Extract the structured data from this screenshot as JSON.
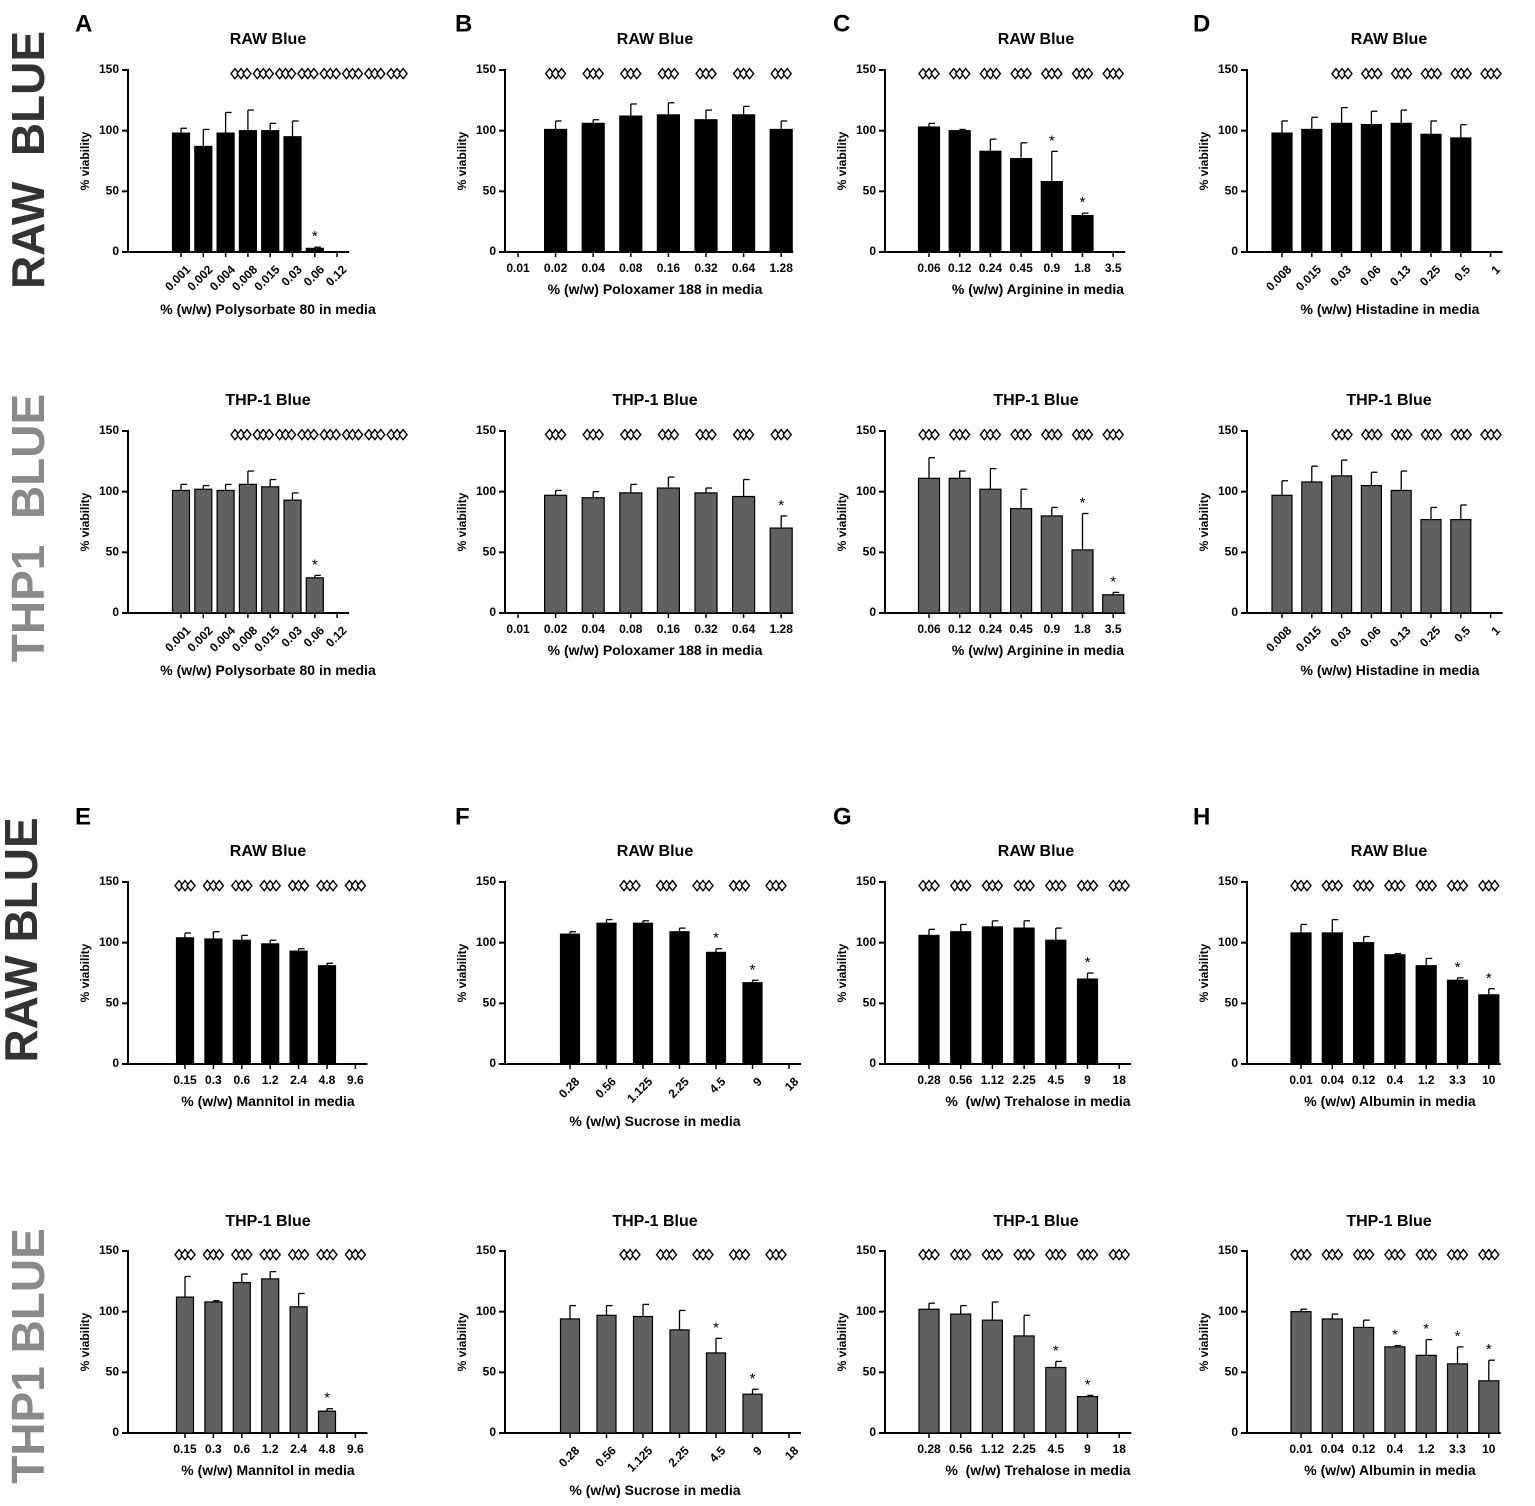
{
  "row_labels": [
    {
      "text": "RAW  BLUE",
      "color": "#333333"
    },
    {
      "text": "THP1  BLUE",
      "color": "#8a8a8a"
    },
    {
      "text": "RAW BLUE",
      "color": "#333333"
    },
    {
      "text": "THP1 BLUE",
      "color": "#8a8a8a"
    }
  ],
  "colors": {
    "raw_bar": "#000000",
    "thp_bar": "#606060",
    "axis": "#000000"
  },
  "chart_data": [
    {
      "id": "A1",
      "letter": "A",
      "type": "bar",
      "title": "RAW Blue",
      "xlabel": "% (w/w) Polysorbate 80 in media",
      "ylabel": "% viability",
      "ylim": [
        0,
        150
      ],
      "yticks": [
        0,
        50,
        100,
        150
      ],
      "categories": [
        "0.001",
        "0.002",
        "0.004",
        "0.008",
        "0.015",
        "0.03",
        "0.06",
        "0.12"
      ],
      "values": [
        98,
        87,
        98,
        100,
        100,
        95,
        3,
        null
      ],
      "errors": [
        4,
        14,
        17,
        17,
        6,
        13,
        1,
        null
      ],
      "significant": [
        false,
        false,
        false,
        false,
        false,
        false,
        true,
        false
      ],
      "rotate_ticks": true,
      "fill": "raw"
    },
    {
      "id": "B1",
      "letter": "B",
      "type": "bar",
      "title": "RAW Blue",
      "xlabel": "% (w/w) Poloxamer 188 in media",
      "ylabel": "% viability",
      "ylim": [
        0,
        150
      ],
      "yticks": [
        0,
        50,
        100,
        150
      ],
      "categories": [
        "0.01",
        "0.02",
        "0.04",
        "0.08",
        "0.16",
        "0.32",
        "0.64",
        "1.28"
      ],
      "values": [
        null,
        101,
        106,
        112,
        113,
        109,
        113,
        101
      ],
      "errors": [
        null,
        7,
        3,
        10,
        10,
        8,
        7,
        7
      ],
      "significant": [
        false,
        false,
        false,
        false,
        false,
        false,
        false,
        false
      ],
      "rotate_ticks": false,
      "fill": "raw"
    },
    {
      "id": "C1",
      "letter": "C",
      "type": "bar",
      "title": "RAW Blue",
      "xlabel": "% (w/w) Arginine in media",
      "ylabel": "% viability",
      "ylim": [
        0,
        150
      ],
      "yticks": [
        0,
        50,
        100,
        150
      ],
      "categories": [
        "0.06",
        "0.12",
        "0.24",
        "0.45",
        "0.9",
        "1.8",
        "3.5"
      ],
      "values": [
        103,
        100,
        83,
        77,
        58,
        30,
        null
      ],
      "errors": [
        3,
        1,
        10,
        13,
        25,
        2,
        null
      ],
      "significant": [
        false,
        false,
        false,
        false,
        true,
        true,
        false
      ],
      "rotate_ticks": false,
      "fill": "raw"
    },
    {
      "id": "D1",
      "letter": "D",
      "type": "bar",
      "title": "RAW Blue",
      "xlabel": "% (w/w) Histadine in media",
      "ylabel": "% viability",
      "ylim": [
        0,
        150
      ],
      "yticks": [
        0,
        50,
        100,
        150
      ],
      "categories": [
        "0.008",
        "0.015",
        "0.03",
        "0.06",
        "0.13",
        "0.25",
        "0.5",
        "1"
      ],
      "values": [
        98,
        101,
        106,
        105,
        106,
        97,
        94,
        null
      ],
      "errors": [
        10,
        10,
        13,
        11,
        11,
        11,
        11,
        null
      ],
      "significant": [
        false,
        false,
        false,
        false,
        false,
        false,
        false,
        false
      ],
      "rotate_ticks": true,
      "fill": "raw"
    },
    {
      "id": "A2",
      "letter": "",
      "type": "bar",
      "title": "THP-1 Blue",
      "xlabel": "% (w/w) Polysorbate 80 in media",
      "ylabel": "% viability",
      "ylim": [
        0,
        150
      ],
      "yticks": [
        0,
        50,
        100,
        150
      ],
      "categories": [
        "0.001",
        "0.002",
        "0.004",
        "0.008",
        "0.015",
        "0.03",
        "0.06",
        "0.12"
      ],
      "values": [
        101,
        102,
        101,
        106,
        104,
        93,
        29,
        null
      ],
      "errors": [
        5,
        3,
        5,
        11,
        6,
        6,
        2,
        null
      ],
      "significant": [
        false,
        false,
        false,
        false,
        false,
        false,
        true,
        false
      ],
      "rotate_ticks": true,
      "fill": "thp"
    },
    {
      "id": "B2",
      "letter": "",
      "type": "bar",
      "title": "THP-1 Blue",
      "xlabel": "% (w/w) Poloxamer 188 in media",
      "ylabel": "% viability",
      "ylim": [
        0,
        150
      ],
      "yticks": [
        0,
        50,
        100,
        150
      ],
      "categories": [
        "0.01",
        "0.02",
        "0.04",
        "0.08",
        "0.16",
        "0.32",
        "0.64",
        "1.28"
      ],
      "values": [
        null,
        97,
        95,
        99,
        103,
        99,
        96,
        70
      ],
      "errors": [
        null,
        4,
        5,
        7,
        9,
        4,
        14,
        10
      ],
      "significant": [
        false,
        false,
        false,
        false,
        false,
        false,
        false,
        true
      ],
      "rotate_ticks": false,
      "fill": "thp"
    },
    {
      "id": "C2",
      "letter": "",
      "type": "bar",
      "title": "THP-1 Blue",
      "xlabel": "% (w/w) Arginine in media",
      "ylabel": "% viability",
      "ylim": [
        0,
        150
      ],
      "yticks": [
        0,
        50,
        100,
        150
      ],
      "categories": [
        "0.06",
        "0.12",
        "0.24",
        "0.45",
        "0.9",
        "1.8",
        "3.5"
      ],
      "values": [
        111,
        111,
        102,
        86,
        80,
        52,
        15
      ],
      "errors": [
        17,
        6,
        17,
        16,
        7,
        30,
        2
      ],
      "significant": [
        false,
        false,
        false,
        false,
        false,
        true,
        true
      ],
      "rotate_ticks": false,
      "fill": "thp"
    },
    {
      "id": "D2",
      "letter": "",
      "type": "bar",
      "title": "THP-1 Blue",
      "xlabel": "% (w/w) Histadine in media",
      "ylabel": "% viability",
      "ylim": [
        0,
        150
      ],
      "yticks": [
        0,
        50,
        100,
        150
      ],
      "categories": [
        "0.008",
        "0.015",
        "0.03",
        "0.06",
        "0.13",
        "0.25",
        "0.5",
        "1"
      ],
      "values": [
        97,
        108,
        113,
        105,
        101,
        77,
        77,
        null
      ],
      "errors": [
        12,
        13,
        13,
        11,
        16,
        10,
        12,
        null
      ],
      "significant": [
        false,
        false,
        false,
        false,
        false,
        false,
        false,
        false
      ],
      "rotate_ticks": true,
      "fill": "thp"
    },
    {
      "id": "E1",
      "letter": "E",
      "type": "bar",
      "title": "RAW Blue",
      "xlabel": "% (w/w) Mannitol in media",
      "ylabel": "% viability",
      "ylim": [
        0,
        150
      ],
      "yticks": [
        0,
        50,
        100,
        150
      ],
      "categories": [
        "0.15",
        "0.3",
        "0.6",
        "1.2",
        "2.4",
        "4.8",
        "9.6"
      ],
      "values": [
        104,
        103,
        102,
        99,
        93,
        81,
        null
      ],
      "errors": [
        4,
        6,
        4,
        3,
        2,
        2,
        null
      ],
      "significant": [
        false,
        false,
        false,
        false,
        false,
        false,
        false
      ],
      "rotate_ticks": false,
      "fill": "raw"
    },
    {
      "id": "F1",
      "letter": "F",
      "type": "bar",
      "title": "RAW Blue",
      "xlabel": "% (w/w) Sucrose in media",
      "ylabel": "% viability",
      "ylim": [
        0,
        150
      ],
      "yticks": [
        0,
        50,
        100,
        150
      ],
      "categories": [
        "0.28",
        "0.56",
        "1.125",
        "2.25",
        "4.5",
        "9",
        "18"
      ],
      "values": [
        107,
        116,
        116,
        109,
        92,
        67,
        null
      ],
      "errors": [
        2,
        3,
        2,
        3,
        3,
        2,
        null
      ],
      "significant": [
        false,
        false,
        false,
        false,
        true,
        true,
        false
      ],
      "rotate_ticks": true,
      "fill": "raw"
    },
    {
      "id": "G1",
      "letter": "G",
      "type": "bar",
      "title": "RAW Blue",
      "xlabel": "%  (w/w) Trehalose in media",
      "ylabel": "% viability",
      "ylim": [
        0,
        150
      ],
      "yticks": [
        0,
        50,
        100,
        150
      ],
      "categories": [
        "0.28",
        "0.56",
        "1.12",
        "2.25",
        "4.5",
        "9",
        "18"
      ],
      "values": [
        106,
        109,
        113,
        112,
        102,
        70,
        null
      ],
      "errors": [
        5,
        6,
        5,
        6,
        10,
        5,
        null
      ],
      "significant": [
        false,
        false,
        false,
        false,
        false,
        true,
        false
      ],
      "rotate_ticks": false,
      "fill": "raw"
    },
    {
      "id": "H1",
      "letter": "H",
      "type": "bar",
      "title": "RAW Blue",
      "xlabel": "% (w/w) Albumin in media",
      "ylabel": "% viability",
      "ylim": [
        0,
        150
      ],
      "yticks": [
        0,
        50,
        100,
        150
      ],
      "categories": [
        "0.01",
        "0.04",
        "0.12",
        "0.4",
        "1.2",
        "3.3",
        "10"
      ],
      "values": [
        108,
        108,
        100,
        90,
        81,
        69,
        57
      ],
      "errors": [
        7,
        11,
        5,
        1,
        6,
        2,
        5
      ],
      "significant": [
        false,
        false,
        false,
        false,
        false,
        true,
        true
      ],
      "rotate_ticks": false,
      "fill": "raw"
    },
    {
      "id": "E2",
      "letter": "",
      "type": "bar",
      "title": "THP-1 Blue",
      "xlabel": "% (w/w) Mannitol in media",
      "ylabel": "% viability",
      "ylim": [
        0,
        150
      ],
      "yticks": [
        0,
        50,
        100,
        150
      ],
      "categories": [
        "0.15",
        "0.3",
        "0.6",
        "1.2",
        "2.4",
        "4.8",
        "9.6"
      ],
      "values": [
        112,
        108,
        124,
        127,
        104,
        18,
        null
      ],
      "errors": [
        17,
        1,
        7,
        6,
        11,
        2,
        null
      ],
      "significant": [
        false,
        false,
        false,
        false,
        false,
        true,
        false
      ],
      "rotate_ticks": false,
      "fill": "thp"
    },
    {
      "id": "F2",
      "letter": "",
      "type": "bar",
      "title": "THP-1 Blue",
      "xlabel": "% (w/w) Sucrose in media",
      "ylabel": "% viability",
      "ylim": [
        0,
        150
      ],
      "yticks": [
        0,
        50,
        100,
        150
      ],
      "categories": [
        "0.28",
        "0.56",
        "1.125",
        "2.25",
        "4.5",
        "9",
        "18"
      ],
      "values": [
        94,
        97,
        96,
        85,
        66,
        32,
        null
      ],
      "errors": [
        11,
        8,
        10,
        16,
        12,
        4,
        null
      ],
      "significant": [
        false,
        false,
        false,
        false,
        true,
        true,
        false
      ],
      "rotate_ticks": true,
      "fill": "thp"
    },
    {
      "id": "G2",
      "letter": "",
      "type": "bar",
      "title": "THP-1 Blue",
      "xlabel": "%  (w/w) Trehalose in media",
      "ylabel": "% viability",
      "ylim": [
        0,
        150
      ],
      "yticks": [
        0,
        50,
        100,
        150
      ],
      "categories": [
        "0.28",
        "0.56",
        "1.12",
        "2.25",
        "4.5",
        "9",
        "18"
      ],
      "values": [
        102,
        98,
        93,
        80,
        54,
        30,
        null
      ],
      "errors": [
        5,
        7,
        15,
        17,
        5,
        1,
        null
      ],
      "significant": [
        false,
        false,
        false,
        false,
        true,
        true,
        false
      ],
      "rotate_ticks": false,
      "fill": "thp"
    },
    {
      "id": "H2",
      "letter": "",
      "type": "bar",
      "title": "THP-1 Blue",
      "xlabel": "% (w/w) Albumin in media",
      "ylabel": "% viability",
      "ylim": [
        0,
        150
      ],
      "yticks": [
        0,
        50,
        100,
        150
      ],
      "categories": [
        "0.01",
        "0.04",
        "0.12",
        "0.4",
        "1.2",
        "3.3",
        "10"
      ],
      "values": [
        100,
        94,
        87,
        71,
        64,
        57,
        43
      ],
      "errors": [
        2,
        4,
        6,
        1,
        13,
        14,
        17
      ],
      "significant": [
        false,
        false,
        false,
        true,
        true,
        true,
        true
      ],
      "rotate_ticks": false,
      "fill": "thp"
    }
  ]
}
